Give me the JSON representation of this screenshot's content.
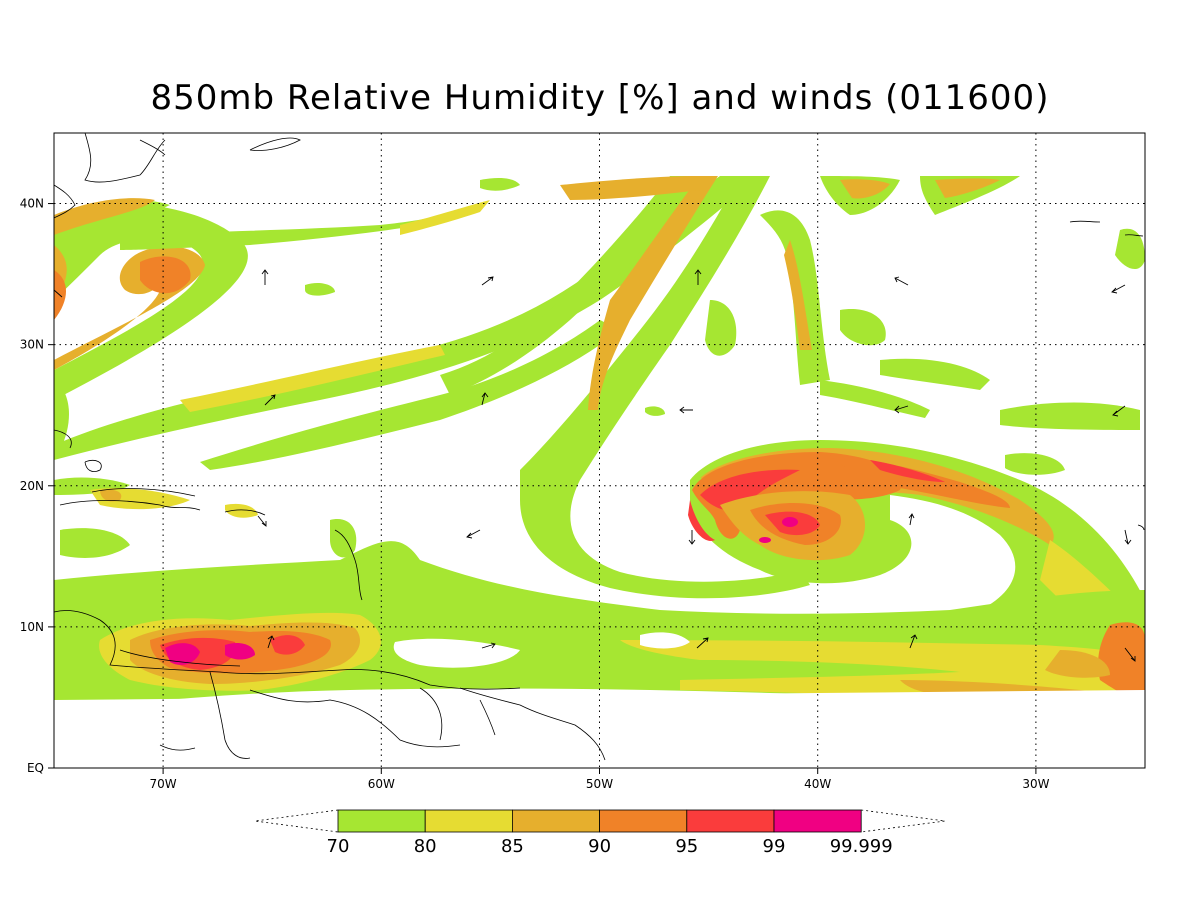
{
  "title": "850mb Relative Humidity [%] and winds (011600)",
  "map": {
    "lon_range": [
      -75,
      -25
    ],
    "lat_range": [
      0,
      45
    ],
    "lon_ticks": [
      {
        "value": -70,
        "label": "70W"
      },
      {
        "value": -60,
        "label": "60W"
      },
      {
        "value": -50,
        "label": "50W"
      },
      {
        "value": -40,
        "label": "40W"
      },
      {
        "value": -30,
        "label": "30W"
      }
    ],
    "lat_ticks": [
      {
        "value": 0,
        "label": "EQ"
      },
      {
        "value": 10,
        "label": "10N"
      },
      {
        "value": 20,
        "label": "20N"
      },
      {
        "value": 30,
        "label": "30N"
      },
      {
        "value": 40,
        "label": "40N"
      }
    ],
    "grid": "dotted"
  },
  "legend": {
    "levels": [
      "70",
      "80",
      "85",
      "90",
      "95",
      "99",
      "99.999"
    ],
    "colors": [
      "#a6e632",
      "#e6dc32",
      "#e6af2d",
      "#f08228",
      "#fa3c3c",
      "#f00082"
    ]
  }
}
